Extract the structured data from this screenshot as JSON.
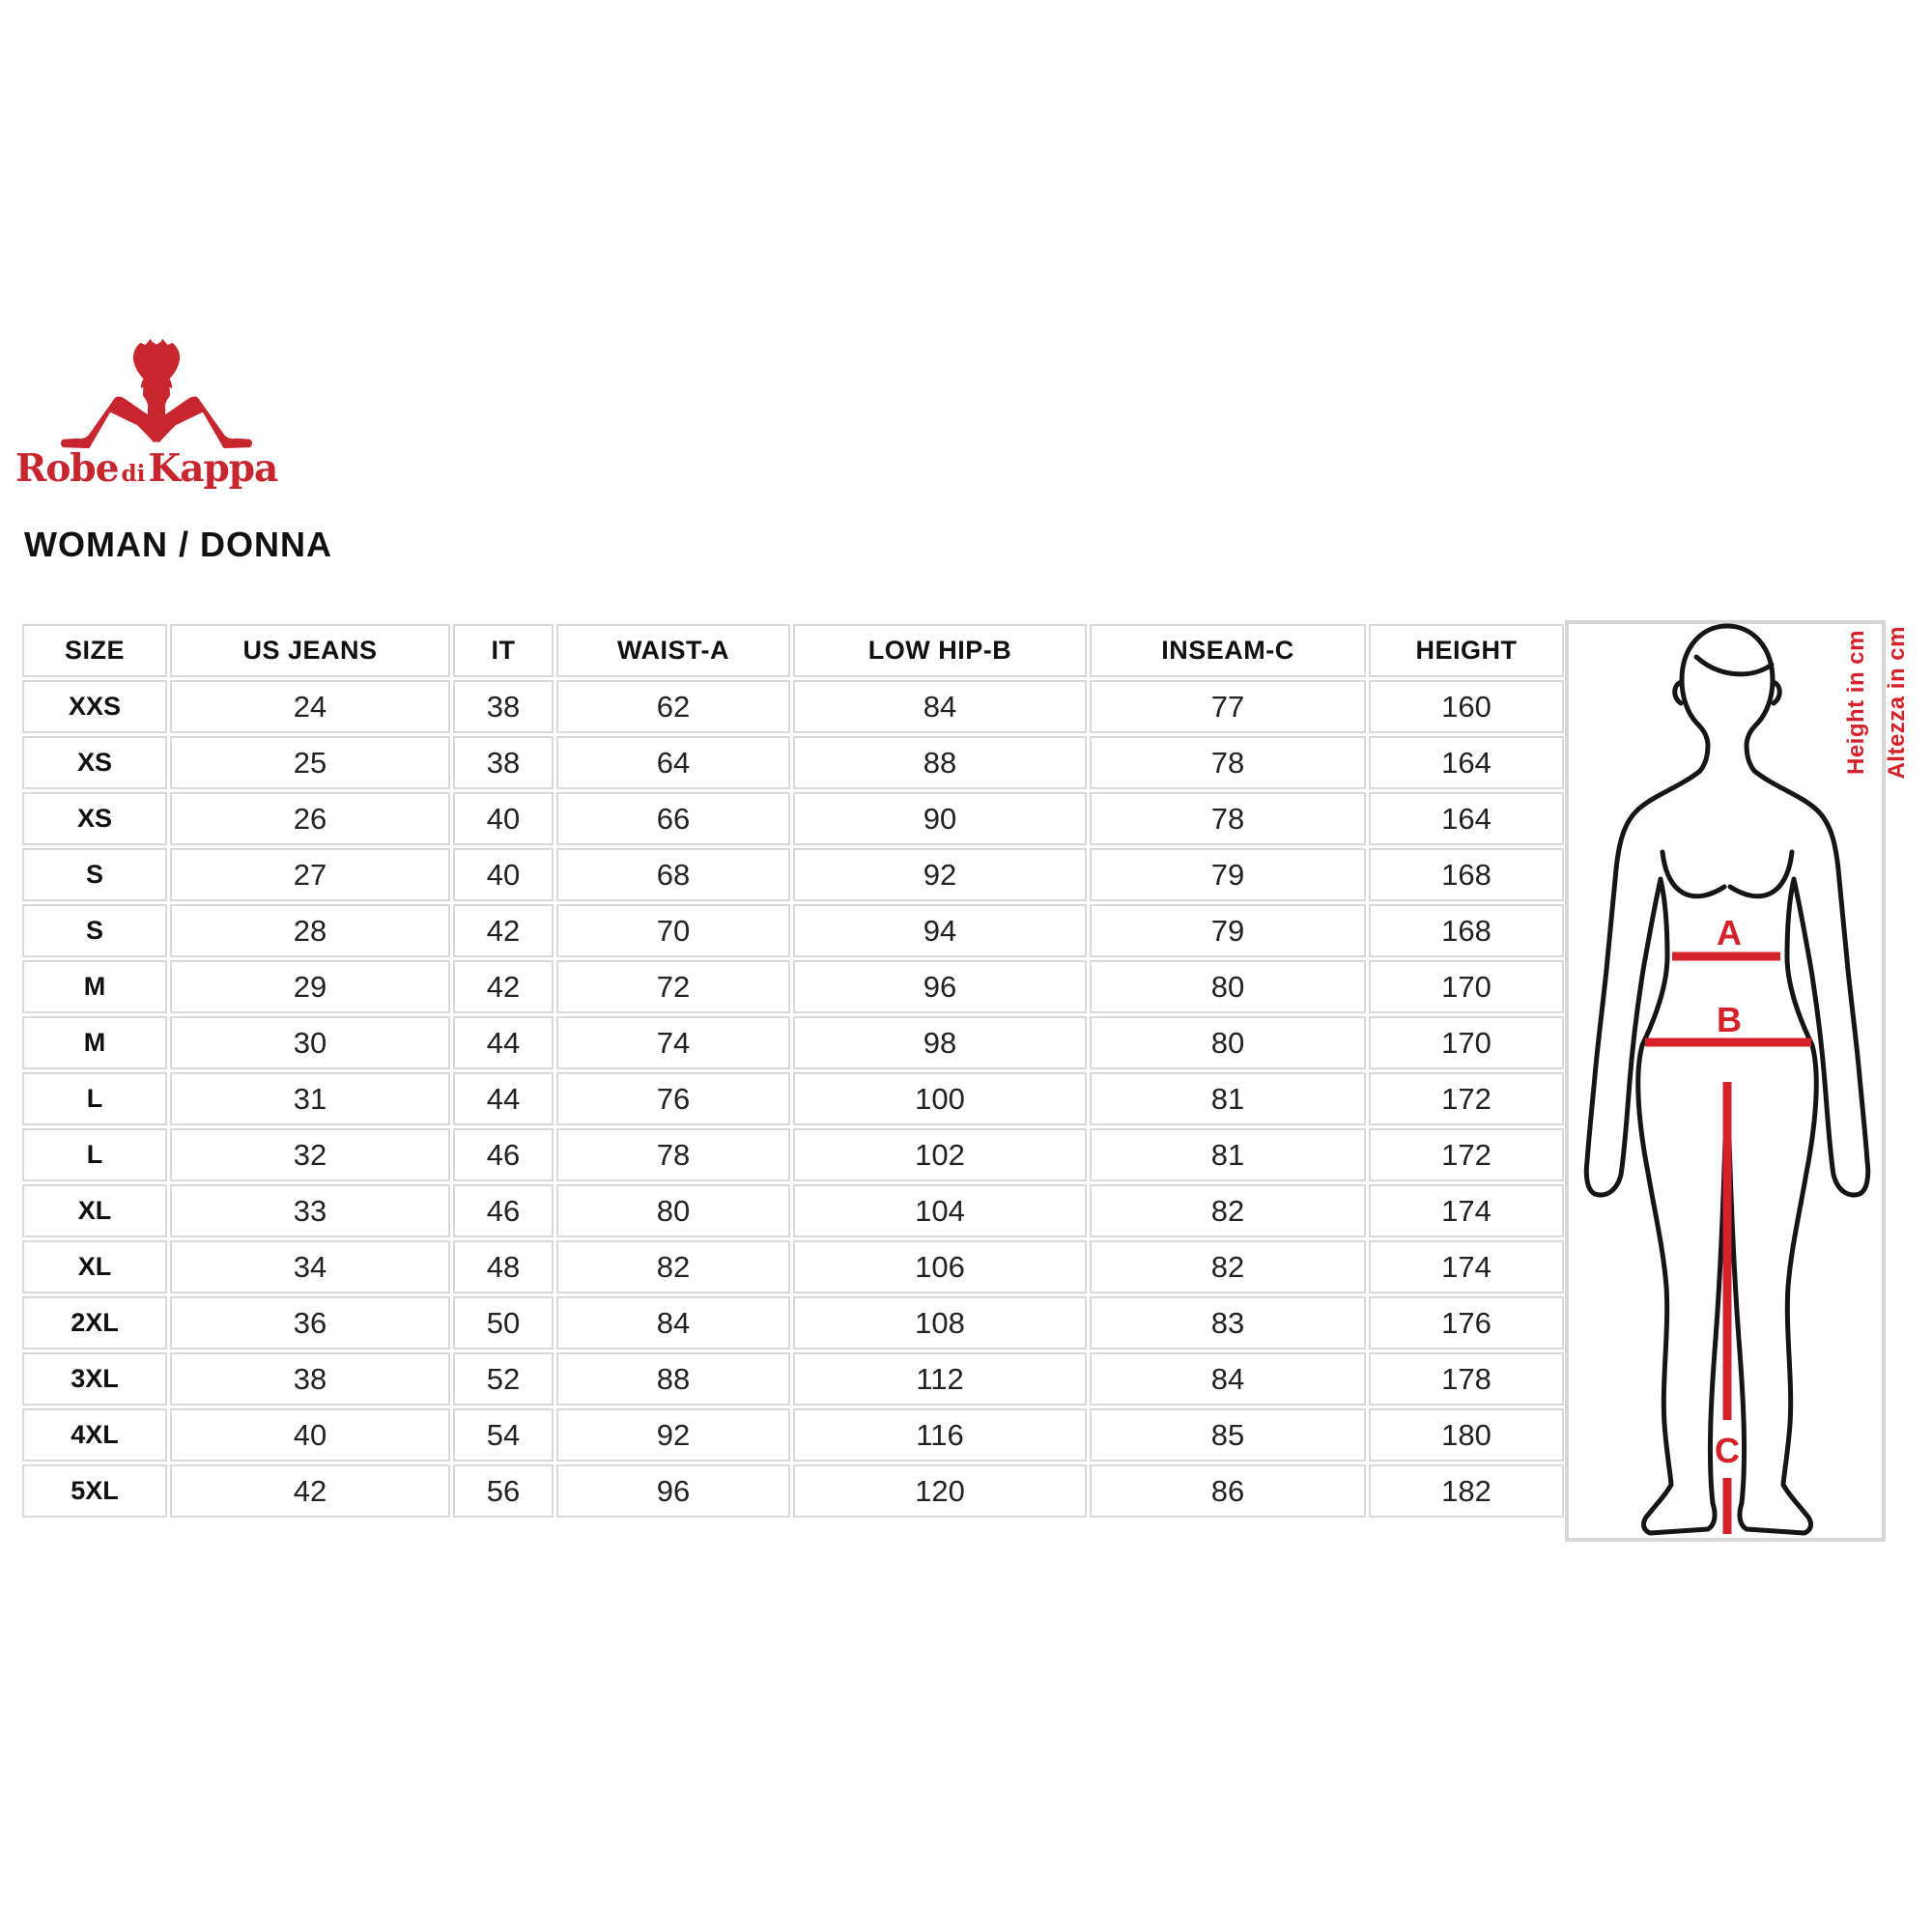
{
  "brand": {
    "robe": "Robe",
    "di": "di",
    "kappa": "Kappa",
    "logo_icon": "kappa-back-to-back-figures"
  },
  "title": "WOMAN / DONNA",
  "size_table": {
    "columns": [
      "SIZE",
      "US JEANS",
      "IT",
      "WAIST-A",
      "LOW HIP-B",
      "INSEAM-C",
      "HEIGHT"
    ],
    "rows": [
      [
        "XXS",
        "24",
        "38",
        "62",
        "84",
        "77",
        "160"
      ],
      [
        "XS",
        "25",
        "38",
        "64",
        "88",
        "78",
        "164"
      ],
      [
        "XS",
        "26",
        "40",
        "66",
        "90",
        "78",
        "164"
      ],
      [
        "S",
        "27",
        "40",
        "68",
        "92",
        "79",
        "168"
      ],
      [
        "S",
        "28",
        "42",
        "70",
        "94",
        "79",
        "168"
      ],
      [
        "M",
        "29",
        "42",
        "72",
        "96",
        "80",
        "170"
      ],
      [
        "M",
        "30",
        "44",
        "74",
        "98",
        "80",
        "170"
      ],
      [
        "L",
        "31",
        "44",
        "76",
        "100",
        "81",
        "172"
      ],
      [
        "L",
        "32",
        "46",
        "78",
        "102",
        "81",
        "172"
      ],
      [
        "XL",
        "33",
        "46",
        "80",
        "104",
        "82",
        "174"
      ],
      [
        "XL",
        "34",
        "48",
        "82",
        "106",
        "82",
        "174"
      ],
      [
        "2XL",
        "36",
        "50",
        "84",
        "108",
        "83",
        "176"
      ],
      [
        "3XL",
        "38",
        "52",
        "88",
        "112",
        "84",
        "178"
      ],
      [
        "4XL",
        "40",
        "54",
        "92",
        "116",
        "85",
        "180"
      ],
      [
        "5XL",
        "42",
        "56",
        "96",
        "120",
        "86",
        "182"
      ]
    ]
  },
  "figure": {
    "label_a": "A",
    "label_b": "B",
    "label_c": "C",
    "height_label": "Height in cm",
    "altezza_label": "Altezza in cm"
  },
  "colors": {
    "brand_red": "#c7262e",
    "annotation_red": "#d5222a",
    "table_border": "#d9d9d9",
    "text_dark": "#1b1b1b"
  }
}
